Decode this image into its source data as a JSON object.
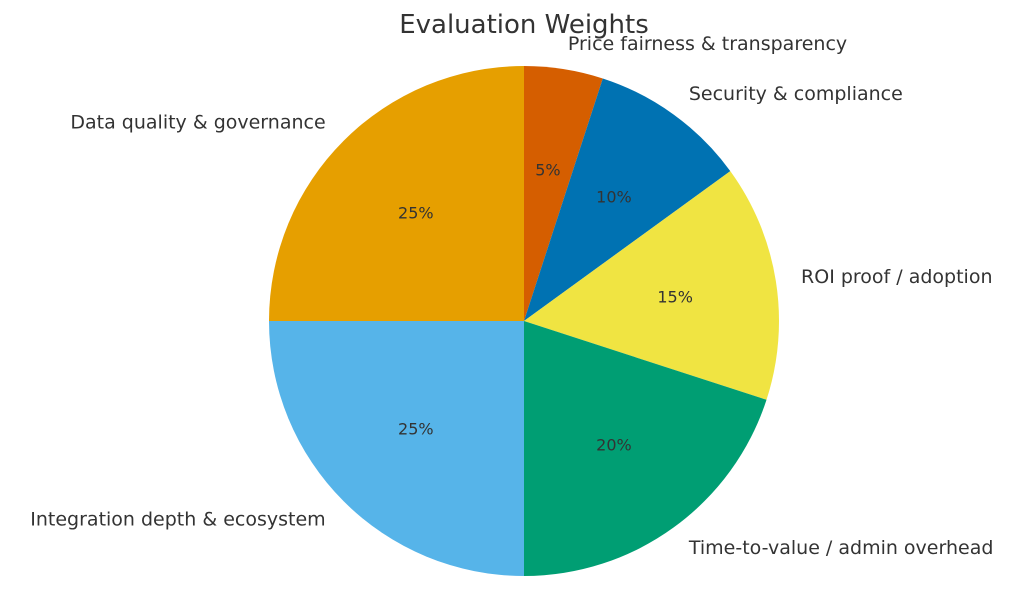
{
  "chart_data": {
    "type": "pie",
    "title": "Evaluation Weights",
    "start_angle_deg": 90,
    "direction": "clockwise",
    "slices": [
      {
        "label": "Price fairness & transparency",
        "value": 5,
        "pct_label": "5%",
        "color": "#D55E00"
      },
      {
        "label": "Security & compliance",
        "value": 10,
        "pct_label": "10%",
        "color": "#0072B2"
      },
      {
        "label": "ROI proof / adoption",
        "value": 15,
        "pct_label": "15%",
        "color": "#F0E442"
      },
      {
        "label": "Time-to-value / admin overhead",
        "value": 20,
        "pct_label": "20%",
        "color": "#009E73"
      },
      {
        "label": "Integration depth & ecosystem",
        "value": 25,
        "pct_label": "25%",
        "color": "#56B4E9"
      },
      {
        "label": "Data quality & governance",
        "value": 25,
        "pct_label": "25%",
        "color": "#E69F00"
      }
    ]
  }
}
